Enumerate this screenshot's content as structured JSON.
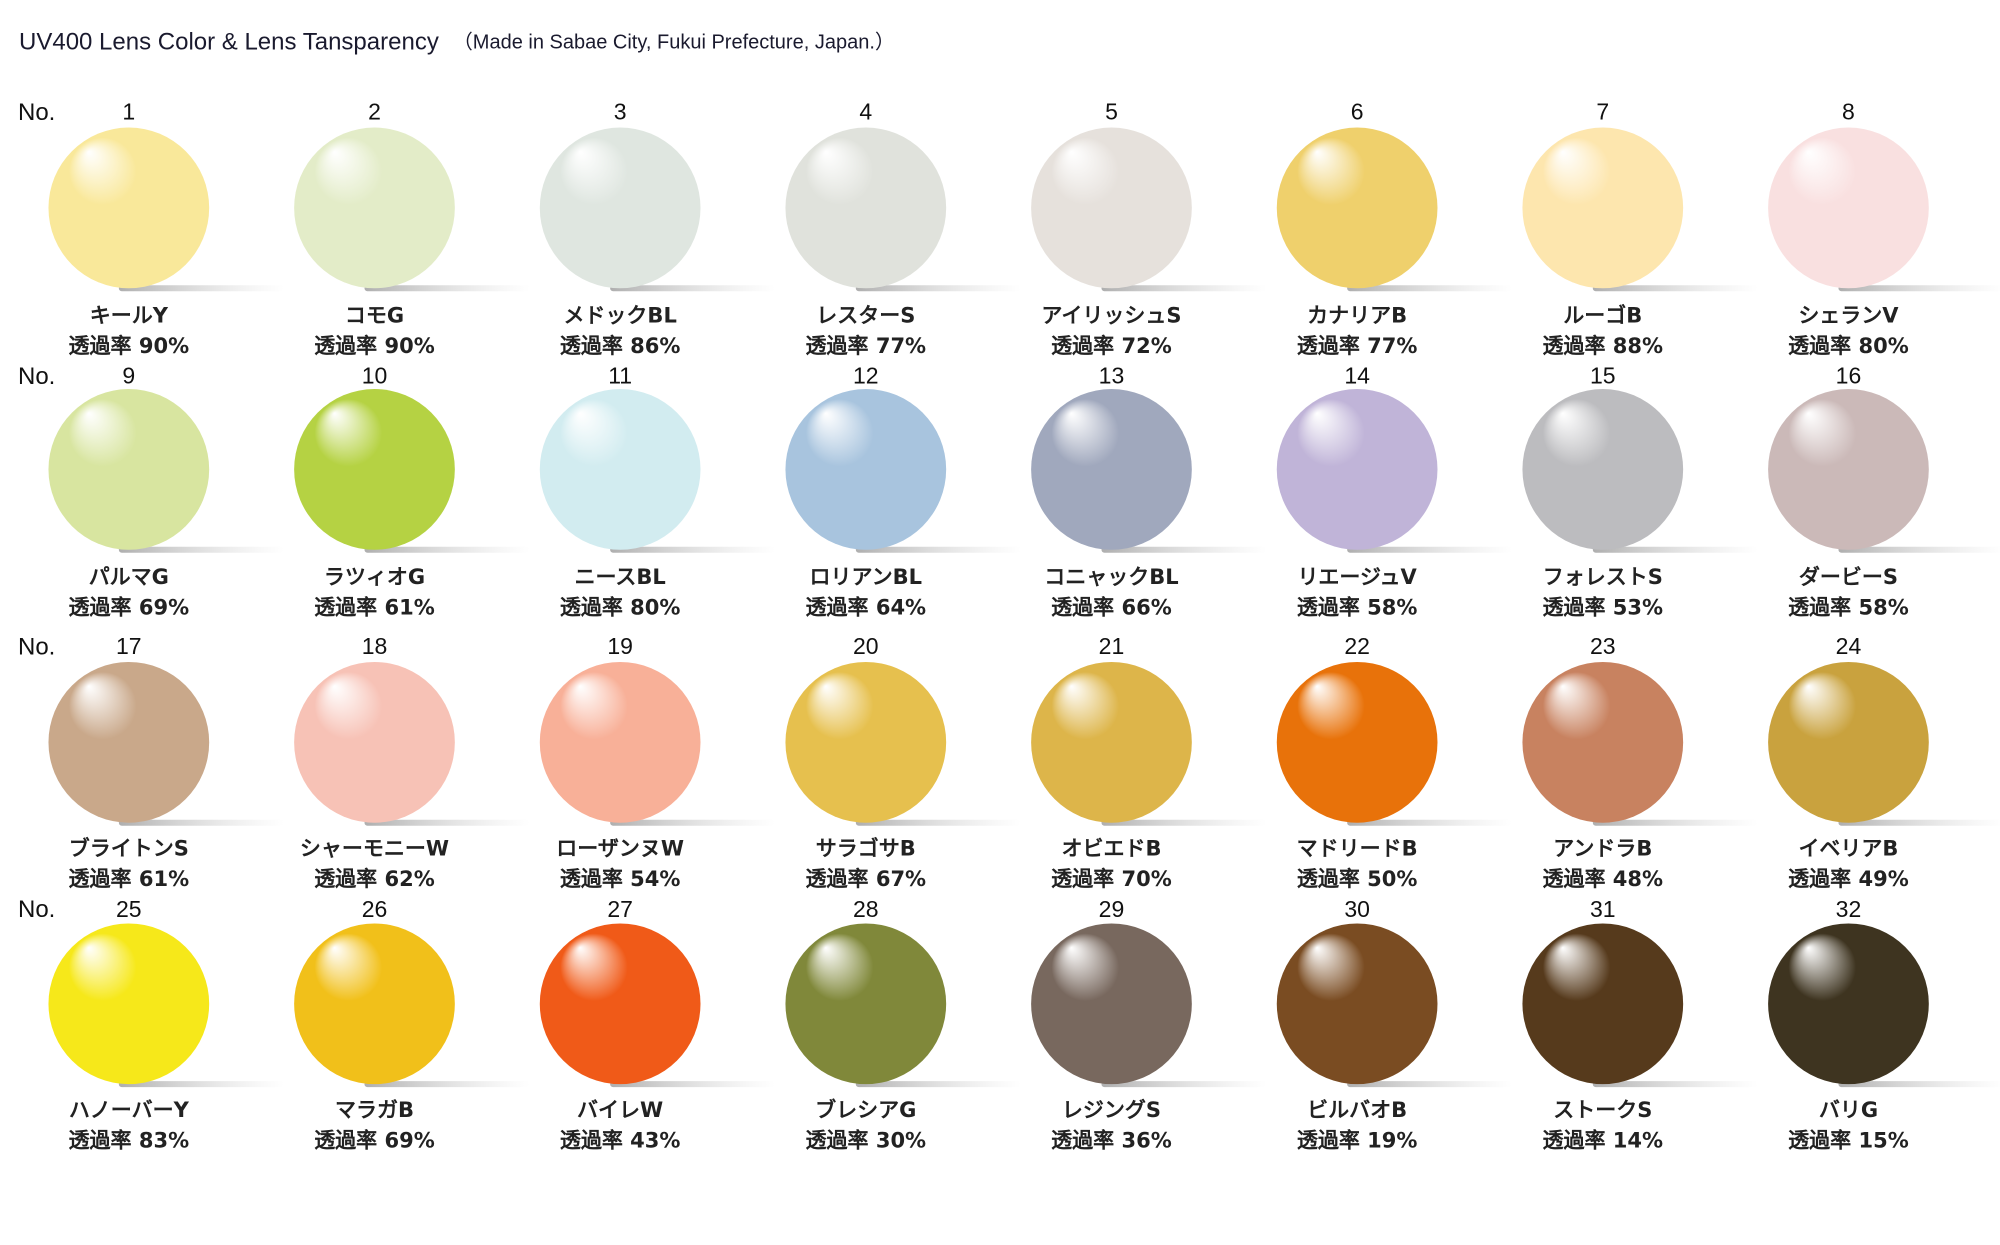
{
  "header": {
    "title": "UV400 Lens Color & Lens Tansparency",
    "subtitle": "（Made in Sabae City, Fukui Prefecture, Japan.）",
    "no_label": "No."
  },
  "lenses": [
    {
      "no": 1,
      "name": "キールY",
      "transmittance": "透過率 90%",
      "color": "#f9e89a"
    },
    {
      "no": 2,
      "name": "コモG",
      "transmittance": "透過率 90%",
      "color": "#e3ecc8"
    },
    {
      "no": 3,
      "name": "メドックBL",
      "transmittance": "透過率 86%",
      "color": "#dfe6e0"
    },
    {
      "no": 4,
      "name": "レスターS",
      "transmittance": "透過率 77%",
      "color": "#e0e2dc"
    },
    {
      "no": 5,
      "name": "アイリッシュS",
      "transmittance": "透過率 72%",
      "color": "#e6e1dc"
    },
    {
      "no": 6,
      "name": "カナリアB",
      "transmittance": "透過率 77%",
      "color": "#efd06c"
    },
    {
      "no": 7,
      "name": "ルーゴB",
      "transmittance": "透過率 88%",
      "color": "#fde6ae"
    },
    {
      "no": 8,
      "name": "シェランV",
      "transmittance": "透過率 80%",
      "color": "#f9e0e0"
    },
    {
      "no": 9,
      "name": "パルマG",
      "transmittance": "透過率 69%",
      "color": "#d8e5a0"
    },
    {
      "no": 10,
      "name": "ラツィオG",
      "transmittance": "透過率 61%",
      "color": "#b5d243"
    },
    {
      "no": 11,
      "name": "ニースBL",
      "transmittance": "透過率 80%",
      "color": "#d2ecf0"
    },
    {
      "no": 12,
      "name": "ロリアンBL",
      "transmittance": "透過率 64%",
      "color": "#a8c4de"
    },
    {
      "no": 13,
      "name": "コニャックBL",
      "transmittance": "透過率 66%",
      "color": "#a0a8bd"
    },
    {
      "no": 14,
      "name": "リエージュV",
      "transmittance": "透過率 58%",
      "color": "#c0b4d8"
    },
    {
      "no": 15,
      "name": "フォレストS",
      "transmittance": "透過率 53%",
      "color": "#bcbcbf"
    },
    {
      "no": 16,
      "name": "ダービーS",
      "transmittance": "透過率 58%",
      "color": "#cbb9b8"
    },
    {
      "no": 17,
      "name": "ブライトンS",
      "transmittance": "透過率 61%",
      "color": "#c9a88a"
    },
    {
      "no": 18,
      "name": "シャーモニーW",
      "transmittance": "透過率 62%",
      "color": "#f7c2b6"
    },
    {
      "no": 19,
      "name": "ローザンヌW",
      "transmittance": "透過率 54%",
      "color": "#f8b098"
    },
    {
      "no": 20,
      "name": "サラゴサB",
      "transmittance": "透過率 67%",
      "color": "#e6c04e"
    },
    {
      "no": 21,
      "name": "オビエドB",
      "transmittance": "透過率 70%",
      "color": "#ddb54a"
    },
    {
      "no": 22,
      "name": "マドリードB",
      "transmittance": "透過率 50%",
      "color": "#e8720a"
    },
    {
      "no": 23,
      "name": "アンドラB",
      "transmittance": "透過率 48%",
      "color": "#c88260"
    },
    {
      "no": 24,
      "name": "イベリアB",
      "transmittance": "透過率 49%",
      "color": "#c9a23e"
    },
    {
      "no": 25,
      "name": "ハノーバーY",
      "transmittance": "透過率 83%",
      "color": "#f6e81a"
    },
    {
      "no": 26,
      "name": "マラガB",
      "transmittance": "透過率 69%",
      "color": "#f1c01a"
    },
    {
      "no": 27,
      "name": "バイレW",
      "transmittance": "透過率 43%",
      "color": "#f05a18"
    },
    {
      "no": 28,
      "name": "ブレシアG",
      "transmittance": "透過率 30%",
      "color": "#80883a"
    },
    {
      "no": 29,
      "name": "レジングS",
      "transmittance": "透過率 36%",
      "color": "#78685e"
    },
    {
      "no": 30,
      "name": "ビルバオB",
      "transmittance": "透過率 19%",
      "color": "#7a4c22"
    },
    {
      "no": 31,
      "name": "ストークS",
      "transmittance": "透過率 14%",
      "color": "#563a1c"
    },
    {
      "no": 32,
      "name": "バリG",
      "transmittance": "透過率 15%",
      "color": "#3e3420"
    }
  ]
}
